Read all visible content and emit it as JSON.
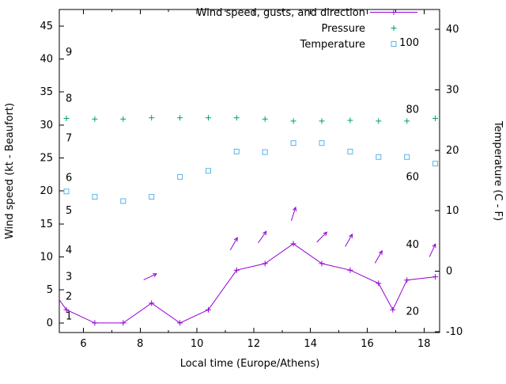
{
  "chart": {
    "xlabel": "Local time (Europe/Athens)",
    "ylabel_left": "Wind speed (kt - Beaufort)",
    "ylabel_right": "Temperature (C - F)",
    "background": "#ffffff",
    "axis_color": "#000000",
    "legend": [
      {
        "label": "Wind speed, gusts, and direction",
        "color": "#9400d3",
        "marker": "line-plus"
      },
      {
        "label": "Pressure",
        "color": "#009e73",
        "marker": "plus"
      },
      {
        "label": "Temperature",
        "color": "#56b4e9",
        "marker": "open-square"
      }
    ]
  },
  "chart_data": {
    "type": "line",
    "title": "",
    "xlabel": "Local time (Europe/Athens)",
    "ylabel_left": "Wind speed (kt - Beaufort)",
    "ylabel_right": "Temperature (C - F)",
    "axes": {
      "xlim": [
        5.15,
        18.55
      ],
      "x_major": [
        6,
        8,
        10,
        12,
        14,
        16,
        18
      ],
      "x_minor": [
        7,
        9,
        11,
        13,
        15,
        17
      ],
      "left_lim": [
        -1.45,
        47.5
      ],
      "left_major": [
        0,
        5,
        10,
        15,
        20,
        25,
        30,
        35,
        40,
        45
      ],
      "right_lim": [
        -10.15,
        43.3
      ],
      "right_major": [
        -10,
        0,
        10,
        20,
        30,
        40
      ]
    },
    "series": [
      {
        "id": "wind",
        "name": "Wind speed, gusts, and direction",
        "axis": "left",
        "units": "kt",
        "color": "#9400d3",
        "marker": "plus",
        "line": true,
        "points": [
          [
            5.15,
            3.5
          ],
          [
            5.4,
            2
          ],
          [
            6.4,
            0
          ],
          [
            7.4,
            0
          ],
          [
            8.4,
            3
          ],
          [
            9.4,
            0
          ],
          [
            10.4,
            2
          ],
          [
            11.4,
            8
          ],
          [
            12.4,
            9
          ],
          [
            13.4,
            12
          ],
          [
            14.4,
            9
          ],
          [
            15.4,
            8
          ],
          [
            16.4,
            6
          ],
          [
            16.9,
            2
          ],
          [
            17.4,
            6.5
          ],
          [
            18.4,
            7
          ]
        ]
      },
      {
        "id": "pressure",
        "name": "Pressure",
        "axis": "left",
        "units": "",
        "color": "#009e73",
        "marker": "plus",
        "line": false,
        "points": [
          [
            5.4,
            31
          ],
          [
            6.4,
            30.9
          ],
          [
            7.4,
            30.9
          ],
          [
            8.4,
            31.1
          ],
          [
            9.4,
            31.1
          ],
          [
            10.4,
            31.1
          ],
          [
            11.4,
            31.1
          ],
          [
            12.4,
            30.9
          ],
          [
            13.4,
            30.6
          ],
          [
            14.4,
            30.6
          ],
          [
            15.4,
            30.7
          ],
          [
            16.4,
            30.6
          ],
          [
            17.4,
            30.6
          ],
          [
            18.4,
            31
          ]
        ]
      },
      {
        "id": "temperature",
        "name": "Temperature",
        "axis": "right",
        "units": "C",
        "color": "#56b4e9",
        "marker": "square",
        "line": false,
        "points": [
          [
            5.4,
            13.2
          ],
          [
            6.4,
            12.3
          ],
          [
            7.4,
            11.6
          ],
          [
            8.4,
            12.3
          ],
          [
            9.4,
            15.6
          ],
          [
            10.4,
            16.6
          ],
          [
            11.4,
            19.8
          ],
          [
            12.4,
            19.7
          ],
          [
            13.4,
            21.2
          ],
          [
            14.4,
            21.2
          ],
          [
            15.4,
            19.8
          ],
          [
            16.4,
            18.9
          ],
          [
            17.4,
            18.9
          ],
          [
            18.4,
            17.8
          ]
        ]
      }
    ],
    "arrows": [
      {
        "t": 8.35,
        "kt": 7,
        "angle": 25
      },
      {
        "t": 11.3,
        "kt": 12,
        "angle": 60
      },
      {
        "t": 12.3,
        "kt": 13,
        "angle": 55
      },
      {
        "t": 13.4,
        "kt": 16.5,
        "angle": 72
      },
      {
        "t": 14.4,
        "kt": 13,
        "angle": 45
      },
      {
        "t": 15.35,
        "kt": 12.5,
        "angle": 60
      },
      {
        "t": 16.4,
        "kt": 10,
        "angle": 60
      },
      {
        "t": 18.3,
        "kt": 11,
        "angle": 65
      }
    ],
    "beaufort_labels": [
      {
        "text": "1",
        "kt": 1
      },
      {
        "text": "2",
        "kt": 4
      },
      {
        "text": "3",
        "kt": 7
      },
      {
        "text": "4",
        "kt": 11
      },
      {
        "text": "5",
        "kt": 17
      },
      {
        "text": "6",
        "kt": 22
      },
      {
        "text": "7",
        "kt": 28
      },
      {
        "text": "8",
        "kt": 34
      },
      {
        "text": "9",
        "kt": 41
      }
    ],
    "fahrenheit_labels": [
      {
        "text": "20",
        "c": -6.7
      },
      {
        "text": "40",
        "c": 4.4
      },
      {
        "text": "60",
        "c": 15.6
      },
      {
        "text": "80",
        "c": 26.7
      },
      {
        "text": "100",
        "c": 37.8
      }
    ]
  }
}
